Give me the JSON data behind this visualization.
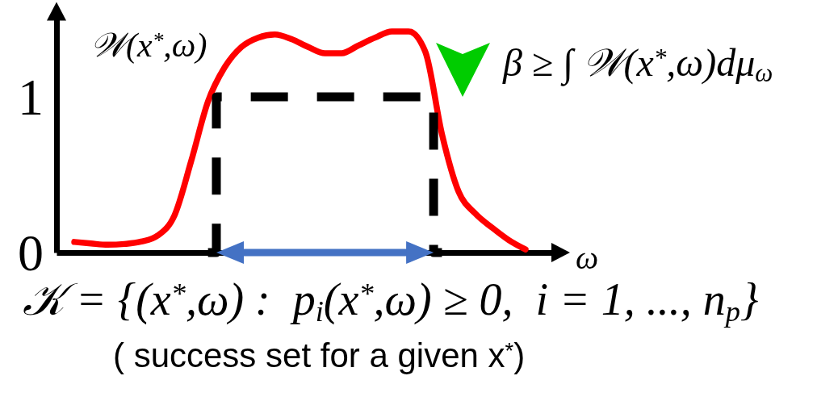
{
  "chart_data": {
    "type": "line",
    "ylabel": "𝒲(x$^{*}$,ω)",
    "xlabel": "ω",
    "annotations": [
      "β ≥ ∫ 𝒲(x$^{*}$,ω)dμ$_{ω}$",
      "𝒦 = {(x$^{*}$,ω) :  p$_{i}$(x$^{*}$,ω) ≥ 0,  i = 1, ..., n$_{p}$}",
      "( success set for a given x$^{*}$)"
    ],
    "categories": [
      null,
      null,
      null,
      null,
      null,
      null,
      null,
      null,
      null,
      null,
      null,
      null,
      null,
      null,
      null,
      null,
      null,
      null,
      null,
      null,
      null,
      null,
      null,
      null,
      null,
      null,
      null,
      null
    ],
    "series": [
      {
        "color": "#ff0000",
        "values": [
          0.068,
          0.058,
          0.05,
          0.055,
          0.07,
          0.11,
          0.24,
          0.59,
          0.97,
          1.19,
          1.32,
          1.38,
          1.4,
          1.37,
          1.32,
          1.28,
          1.28,
          1.33,
          1.38,
          1.42,
          1.42,
          1.29,
          0.76,
          0.39,
          0.25,
          0.16,
          0.08,
          0.02
        ]
      },
      {
        "type": "step",
        "color": "#000000",
        "line_style": "dashed",
        "values": [
          null,
          null,
          null,
          null,
          null,
          null,
          null,
          null,
          0,
          1,
          1,
          1,
          1,
          1,
          1,
          1,
          1,
          1,
          1,
          1,
          1,
          1,
          0,
          null,
          null,
          null,
          null,
          null
        ]
      }
    ],
    "ylim": [
      0,
      1.5
    ],
    "yticks": [
      0,
      1
    ],
    "tick_labels": "y"
  }
}
